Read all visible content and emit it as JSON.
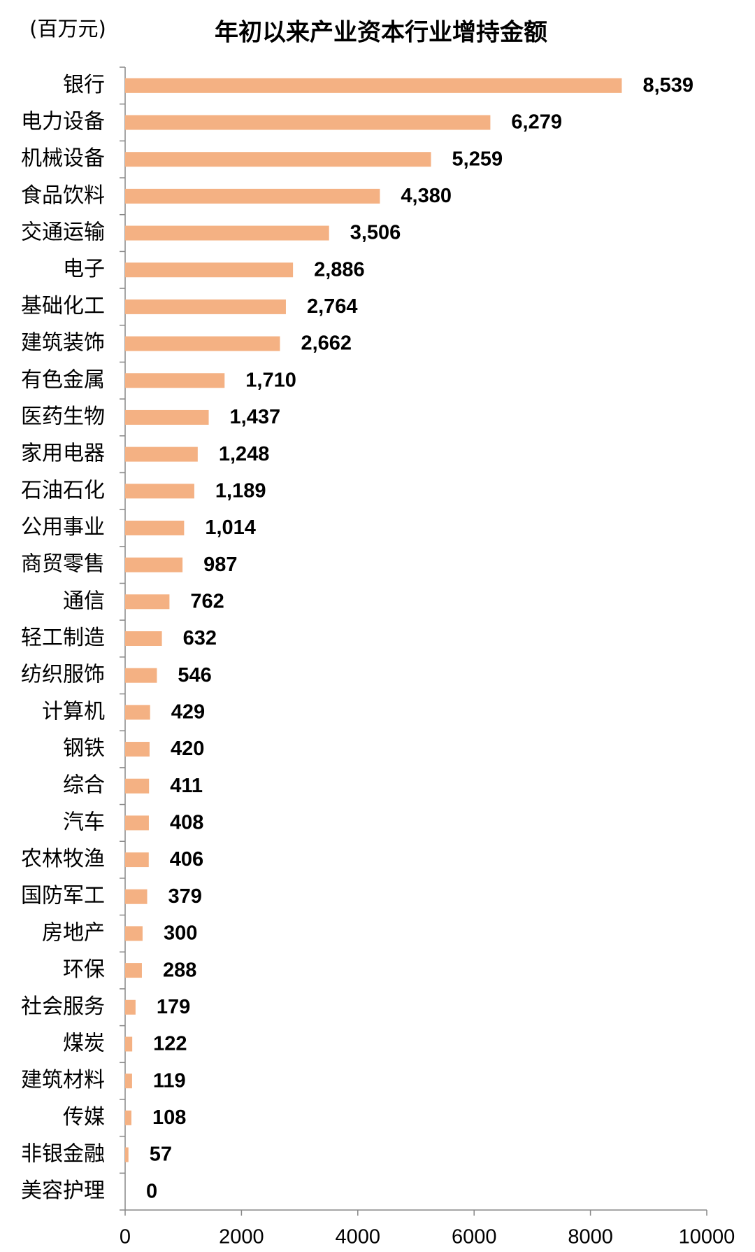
{
  "chart_data": {
    "type": "bar",
    "orientation": "horizontal",
    "title": "年初以来产业资本行业增持金额",
    "unit": "(百万元)",
    "categories": [
      "银行",
      "电力设备",
      "机械设备",
      "食品饮料",
      "交通运输",
      "电子",
      "基础化工",
      "建筑装饰",
      "有色金属",
      "医药生物",
      "家用电器",
      "石油石化",
      "公用事业",
      "商贸零售",
      "通信",
      "轻工制造",
      "纺织服饰",
      "计算机",
      "钢铁",
      "综合",
      "汽车",
      "农林牧渔",
      "国防军工",
      "房地产",
      "环保",
      "社会服务",
      "煤炭",
      "建筑材料",
      "传媒",
      "非银金融",
      "美容护理"
    ],
    "values": [
      8539,
      6279,
      5259,
      4380,
      3506,
      2886,
      2764,
      2662,
      1710,
      1437,
      1248,
      1189,
      1014,
      987,
      762,
      632,
      546,
      429,
      420,
      411,
      408,
      406,
      379,
      300,
      288,
      179,
      122,
      119,
      108,
      57,
      0
    ],
    "value_labels": [
      "8,539",
      "6,279",
      "5,259",
      "4,380",
      "3,506",
      "2,886",
      "2,764",
      "2,662",
      "1,710",
      "1,437",
      "1,248",
      "1,189",
      "1,014",
      "987",
      "762",
      "632",
      "546",
      "429",
      "420",
      "411",
      "408",
      "406",
      "379",
      "300",
      "288",
      "179",
      "122",
      "119",
      "108",
      "57",
      "0"
    ],
    "color": "#f4b183",
    "xlim": [
      0,
      10000
    ],
    "xticks": [
      0,
      2000,
      4000,
      6000,
      8000,
      10000
    ]
  }
}
